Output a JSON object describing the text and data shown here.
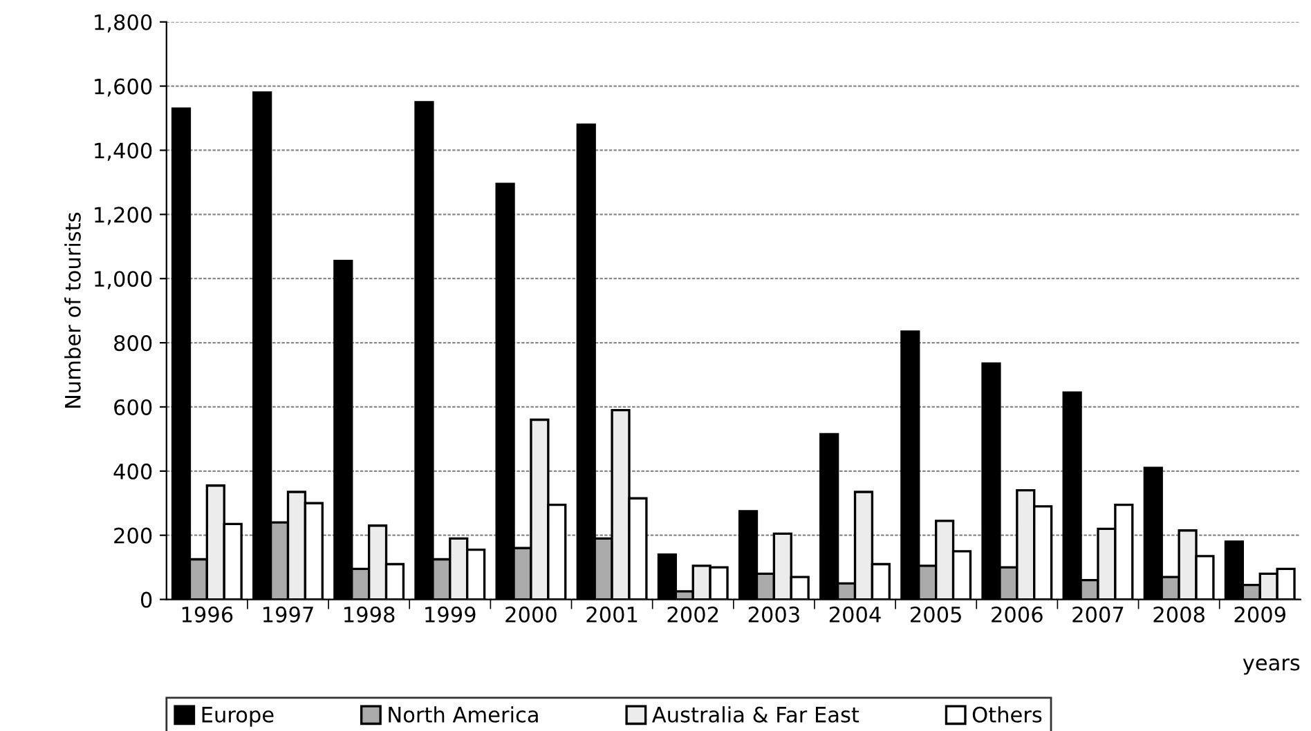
{
  "chart_data": {
    "type": "bar",
    "ylabel": "Number of tourists",
    "xlabel": "years",
    "categories": [
      "1996",
      "1997",
      "1998",
      "1999",
      "2000",
      "2001",
      "2002",
      "2003",
      "2004",
      "2005",
      "2006",
      "2007",
      "2008",
      "2009"
    ],
    "series": [
      {
        "name": "Europe",
        "color": "#000000",
        "values": [
          1530,
          1580,
          1055,
          1550,
          1295,
          1480,
          140,
          275,
          515,
          835,
          735,
          645,
          410,
          180
        ]
      },
      {
        "name": "North America",
        "color": "#aaaaaa",
        "values": [
          125,
          240,
          95,
          125,
          160,
          190,
          25,
          80,
          50,
          105,
          100,
          60,
          70,
          45
        ]
      },
      {
        "name": "Australia & Far East",
        "color": "#ececec",
        "values": [
          355,
          335,
          230,
          190,
          560,
          590,
          105,
          205,
          335,
          245,
          340,
          220,
          215,
          80
        ]
      },
      {
        "name": "Others",
        "color": "#ffffff",
        "values": [
          235,
          300,
          110,
          155,
          295,
          315,
          100,
          70,
          110,
          150,
          290,
          295,
          135,
          95
        ]
      }
    ],
    "ylim": [
      0,
      1800
    ],
    "yticks": [
      {
        "value": 0,
        "label": "0"
      },
      {
        "value": 200,
        "label": "200"
      },
      {
        "value": 400,
        "label": "400"
      },
      {
        "value": 600,
        "label": "600"
      },
      {
        "value": 800,
        "label": "800"
      },
      {
        "value": 1000,
        "label": "1,000"
      },
      {
        "value": 1200,
        "label": "1,200"
      },
      {
        "value": 1400,
        "label": "1,400"
      },
      {
        "value": 1600,
        "label": "1,600"
      },
      {
        "value": 1800,
        "label": "1,800"
      }
    ],
    "grid": "y",
    "legend": "bottom"
  }
}
